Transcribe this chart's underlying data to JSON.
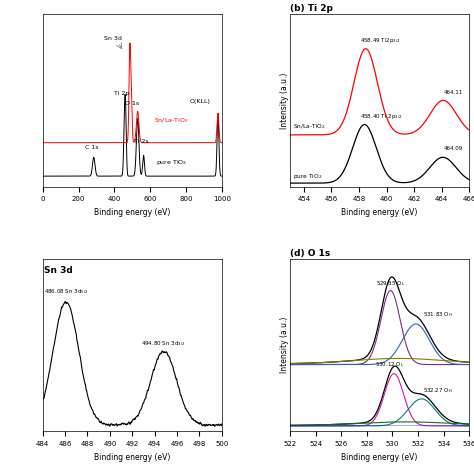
{
  "panel_a": {
    "xlabel": "Binding energy (eV)",
    "xlim": [
      0,
      1000
    ]
  },
  "panel_b": {
    "title": "(b) Ti 2p",
    "xlabel": "Binding energy (eV)",
    "ylabel": "Intensity (a.u.)",
    "xlim": [
      453,
      466
    ]
  },
  "panel_c": {
    "title": "3d",
    "xlabel": "Binding energy (eV)",
    "xlim": [
      484,
      500
    ]
  },
  "panel_d": {
    "title": "(d) O 1s",
    "xlabel": "Binding energy (eV)",
    "ylabel": "Intensity (a.u.)",
    "xlim": [
      522,
      536
    ]
  }
}
